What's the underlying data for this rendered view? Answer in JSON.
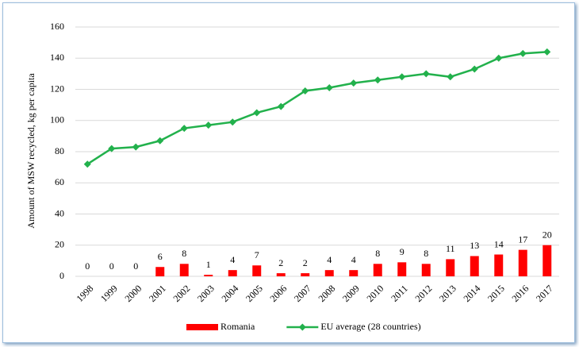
{
  "chart_data": {
    "type": "combo",
    "y_label": "Amount of MSW recycled, kg per capita",
    "categories": [
      "1998",
      "1999",
      "2000",
      "2001",
      "2002",
      "2003",
      "2004",
      "2005",
      "2006",
      "2007",
      "2008",
      "2009",
      "2010",
      "2011",
      "2012",
      "2013",
      "2014",
      "2015",
      "2016",
      "2017"
    ],
    "series": [
      {
        "name": "Romania",
        "type": "bar",
        "color": "#ff0000",
        "values": [
          0,
          0,
          0,
          6,
          8,
          1,
          4,
          7,
          2,
          2,
          4,
          4,
          8,
          9,
          8,
          11,
          13,
          14,
          17,
          20
        ]
      },
      {
        "name": "EU average (28 countries)",
        "type": "line",
        "color": "#22b14c",
        "values": [
          72,
          82,
          83,
          87,
          95,
          97,
          99,
          105,
          109,
          119,
          121,
          124,
          126,
          128,
          130,
          128,
          133,
          140,
          143,
          144
        ]
      }
    ],
    "ylim": [
      0,
      160
    ],
    "yticks": [
      0,
      20,
      40,
      60,
      80,
      100,
      120,
      140,
      160
    ],
    "grid": true,
    "legend": "bottom"
  }
}
